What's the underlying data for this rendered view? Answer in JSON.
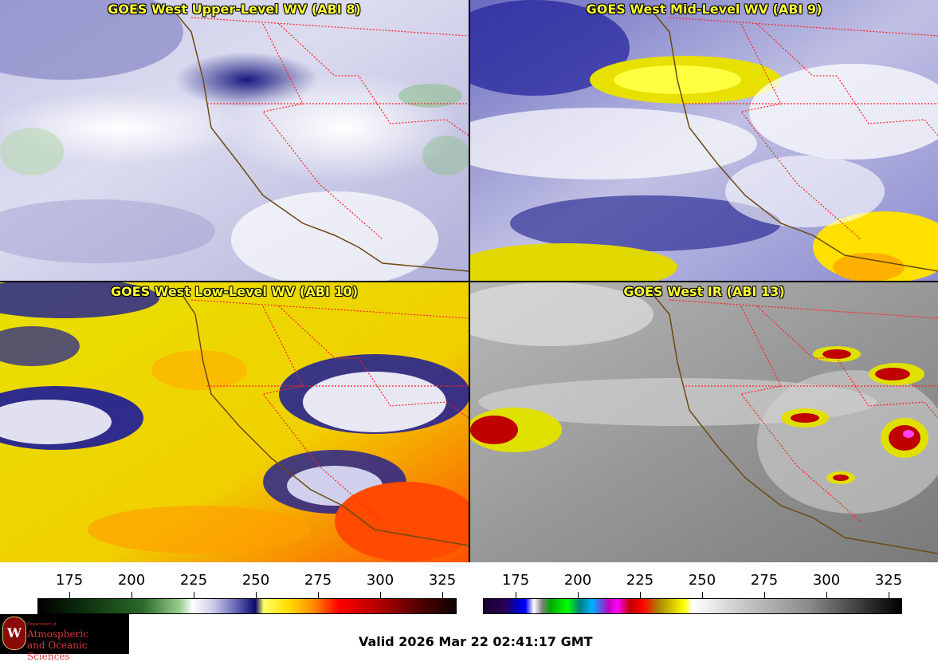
{
  "panels": [
    {
      "title": "GOES West Upper-Level WV (ABI 8)"
    },
    {
      "title": "GOES West Mid-Level WV (ABI 9)"
    },
    {
      "title": "GOES West Low-Level WV (ABI 10)"
    },
    {
      "title": "GOES West IR (ABI 13)"
    }
  ],
  "colorbars": {
    "left_ticks": [
      "175",
      "200",
      "225",
      "250",
      "275",
      "300",
      "325"
    ],
    "right_ticks": [
      "175",
      "200",
      "225",
      "250",
      "275",
      "300",
      "325"
    ]
  },
  "logo": {
    "seal": "W",
    "line1": "Department of",
    "line2": "Atmospheric",
    "line3": "and Oceanic Sciences"
  },
  "footer": {
    "valid_text": "Valid 2026 Mar 22 02:41:17 GMT"
  },
  "colors": {
    "title_text": "#ffff33",
    "state_borders": "#ff2020",
    "coastline": "#8b4513"
  }
}
